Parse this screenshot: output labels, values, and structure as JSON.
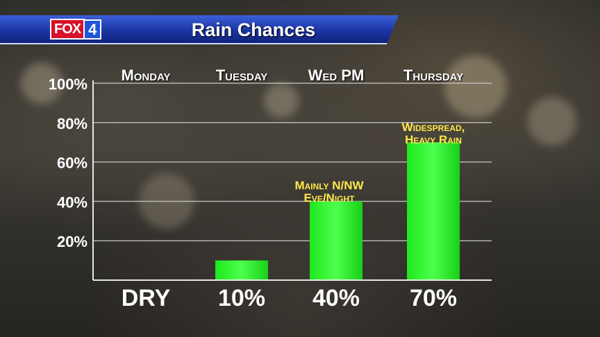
{
  "header": {
    "logo_text": "FOX",
    "logo_number": "4",
    "title": "Rain Chances"
  },
  "colors": {
    "bar": "#2bff2b",
    "annotation": "#ffe94a",
    "header_blue": "#1c35a6"
  },
  "chart_data": {
    "type": "bar",
    "categories": [
      "Monday",
      "Tuesday",
      "Wed PM",
      "Thursday"
    ],
    "values": [
      0,
      10,
      40,
      70
    ],
    "value_labels": [
      "DRY",
      "10%",
      "40%",
      "70%"
    ],
    "bar_visible": [
      false,
      true,
      true,
      true
    ],
    "y_ticks": [
      "100%",
      "80%",
      "60%",
      "40%",
      "20%"
    ],
    "y_tick_values": [
      100,
      80,
      60,
      40,
      20
    ],
    "ylim": [
      0,
      100
    ],
    "grid": true,
    "annotations": [
      {
        "category": "Wed PM",
        "lines": [
          "Mainly N/NW",
          "Eve/Night"
        ]
      },
      {
        "category": "Thursday",
        "lines": [
          "Widespread,",
          "Heavy Rain"
        ]
      }
    ]
  }
}
